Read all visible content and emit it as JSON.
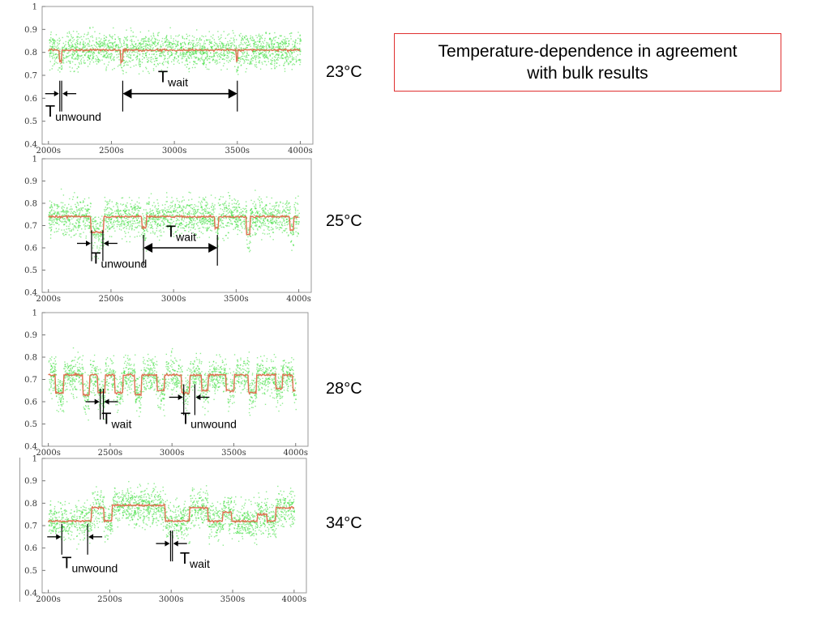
{
  "annotation": {
    "line1": "Temperature-dependence in agreement",
    "line2": "with bulk results"
  },
  "chart_data": [
    {
      "type": "scatter",
      "temperature_label": "23°C",
      "xlim": [
        1950,
        4100
      ],
      "ylim": [
        0.4,
        1.0
      ],
      "xticks": [
        2000,
        2500,
        3000,
        3500,
        4000
      ],
      "xtick_labels": [
        "2000s",
        "2500s",
        "3000s",
        "3500s",
        "4000s"
      ],
      "yticks": [
        0.4,
        0.5,
        0.6,
        0.7,
        0.8,
        0.9,
        1
      ],
      "ytick_labels": [
        "0.4",
        "0.5",
        "0.6",
        "0.7",
        "0.8",
        "0.9",
        "1"
      ],
      "raw_color": "#33dd33",
      "smoothed_color": "#e07050",
      "baseline": 0.81,
      "noise": 0.09,
      "dips": [
        {
          "start": 2090,
          "end": 2105,
          "level": 0.76
        },
        {
          "start": 2575,
          "end": 2590,
          "level": 0.76
        },
        {
          "start": 3490,
          "end": 3505,
          "level": 0.76
        }
      ],
      "annotations": [
        {
          "sym": "T",
          "sub": "wait",
          "kind": "double",
          "x1": 2590,
          "x2": 3500,
          "y": 0.62,
          "label_x": 2870,
          "label_y": 0.67
        },
        {
          "sym": "T",
          "sub": "unwound",
          "kind": "inward",
          "x1": 2090,
          "x2": 2105,
          "y": 0.62,
          "label_x": 1975,
          "label_y": 0.52
        }
      ]
    },
    {
      "type": "scatter",
      "temperature_label": "25°C",
      "xlim": [
        1950,
        4100
      ],
      "ylim": [
        0.4,
        1.0
      ],
      "xticks": [
        2000,
        2500,
        3000,
        3500,
        4000
      ],
      "xtick_labels": [
        "2000s",
        "2500s",
        "3000s",
        "3500s",
        "4000s"
      ],
      "yticks": [
        0.4,
        0.5,
        0.6,
        0.7,
        0.8,
        0.9,
        1
      ],
      "ytick_labels": [
        "0.4",
        "0.5",
        "0.6",
        "0.7",
        "0.8",
        "0.9",
        "1"
      ],
      "raw_color": "#33dd33",
      "smoothed_color": "#e07050",
      "baseline": 0.74,
      "noise": 0.1,
      "dips": [
        {
          "start": 2340,
          "end": 2440,
          "level": 0.67
        },
        {
          "start": 2750,
          "end": 2780,
          "level": 0.69
        },
        {
          "start": 3330,
          "end": 3360,
          "level": 0.69
        },
        {
          "start": 3580,
          "end": 3610,
          "level": 0.66
        },
        {
          "start": 3930,
          "end": 3960,
          "level": 0.68
        }
      ],
      "annotations": [
        {
          "sym": "T",
          "sub": "wait",
          "kind": "double",
          "x1": 2760,
          "x2": 3350,
          "y": 0.6,
          "label_x": 2940,
          "label_y": 0.65
        },
        {
          "sym": "T",
          "sub": "unwound",
          "kind": "inward",
          "x1": 2345,
          "x2": 2435,
          "y": 0.62,
          "label_x": 2340,
          "label_y": 0.53
        }
      ]
    },
    {
      "type": "scatter",
      "temperature_label": "28°C",
      "xlim": [
        1950,
        4100
      ],
      "ylim": [
        0.4,
        1.0
      ],
      "xticks": [
        2000,
        2500,
        3000,
        3500,
        4000
      ],
      "xtick_labels": [
        "2000s",
        "2500s",
        "3000s",
        "3500s",
        "4000s"
      ],
      "yticks": [
        0.4,
        0.5,
        0.6,
        0.7,
        0.8,
        0.9,
        1
      ],
      "ytick_labels": [
        "0.4",
        "0.5",
        "0.6",
        "0.7",
        "0.8",
        "0.9",
        "1"
      ],
      "raw_color": "#33dd33",
      "smoothed_color": "#e07050",
      "baseline": 0.72,
      "noise": 0.1,
      "dips": [
        {
          "start": 2060,
          "end": 2120,
          "level": 0.64
        },
        {
          "start": 2280,
          "end": 2330,
          "level": 0.63
        },
        {
          "start": 2400,
          "end": 2460,
          "level": 0.64
        },
        {
          "start": 2540,
          "end": 2600,
          "level": 0.64
        },
        {
          "start": 2700,
          "end": 2750,
          "level": 0.63
        },
        {
          "start": 2880,
          "end": 2940,
          "level": 0.65
        },
        {
          "start": 3080,
          "end": 3140,
          "level": 0.64
        },
        {
          "start": 3240,
          "end": 3290,
          "level": 0.65
        },
        {
          "start": 3440,
          "end": 3500,
          "level": 0.65
        },
        {
          "start": 3620,
          "end": 3680,
          "level": 0.64
        },
        {
          "start": 3840,
          "end": 3890,
          "level": 0.66
        },
        {
          "start": 3980,
          "end": 4000,
          "level": 0.65
        }
      ],
      "annotations": [
        {
          "sym": "T",
          "sub": "wait",
          "kind": "inward",
          "x1": 2420,
          "x2": 2445,
          "y": 0.6,
          "label_x": 2430,
          "label_y": 0.5
        },
        {
          "sym": "T",
          "sub": "unwound",
          "kind": "inward",
          "x1": 3095,
          "x2": 3185,
          "y": 0.62,
          "label_x": 3070,
          "label_y": 0.5
        }
      ]
    },
    {
      "type": "scatter",
      "temperature_label": "34°C",
      "xlim": [
        1950,
        4100
      ],
      "ylim": [
        0.4,
        1.0
      ],
      "xticks": [
        2000,
        2500,
        3000,
        3500,
        4000
      ],
      "xtick_labels": [
        "2000s",
        "2500s",
        "3000s",
        "3500s",
        "4000s"
      ],
      "yticks": [
        0.4,
        0.5,
        0.6,
        0.7,
        0.8,
        0.9,
        1
      ],
      "ytick_labels": [
        "0.4",
        "0.5",
        "0.6",
        "0.7",
        "0.8",
        "0.9",
        "1"
      ],
      "raw_color": "#33dd33",
      "smoothed_color": "#e07050",
      "baseline": 0.72,
      "noise": 0.1,
      "dips": [
        {
          "start": 2350,
          "end": 2450,
          "level": 0.78
        },
        {
          "start": 2520,
          "end": 2950,
          "level": 0.79
        },
        {
          "start": 3150,
          "end": 3300,
          "level": 0.78
        },
        {
          "start": 3420,
          "end": 3490,
          "level": 0.76
        },
        {
          "start": 3700,
          "end": 3780,
          "level": 0.75
        },
        {
          "start": 3850,
          "end": 4000,
          "level": 0.78
        }
      ],
      "annotations": [
        {
          "sym": "T",
          "sub": "unwound",
          "kind": "inward",
          "x1": 2110,
          "x2": 2320,
          "y": 0.65,
          "label_x": 2110,
          "label_y": 0.51
        },
        {
          "sym": "T",
          "sub": "wait",
          "kind": "inward",
          "x1": 2995,
          "x2": 3010,
          "y": 0.62,
          "label_x": 3070,
          "label_y": 0.53
        }
      ]
    }
  ]
}
